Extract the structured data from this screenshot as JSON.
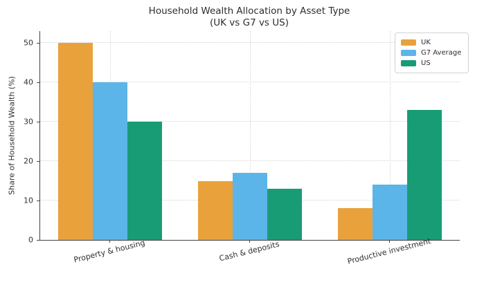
{
  "chart_data": {
    "type": "bar",
    "title": "Household Wealth Allocation by Asset Type",
    "subtitle": "(UK vs G7 vs US)",
    "ylabel": "Share of Household Wealth (%)",
    "xlabel": "",
    "categories": [
      "Property & housing",
      "Cash & deposits",
      "Productive investment"
    ],
    "series": [
      {
        "name": "UK",
        "color": "#E9A23B",
        "values": [
          50,
          15,
          8
        ]
      },
      {
        "name": "G7 Average",
        "color": "#5CB5E8",
        "values": [
          40,
          17,
          14
        ]
      },
      {
        "name": "US",
        "color": "#189C76",
        "values": [
          30,
          13,
          33
        ]
      }
    ],
    "yticks": [
      0,
      10,
      20,
      30,
      40,
      50
    ],
    "ylim": [
      0,
      53
    ],
    "grid": {
      "horizontal": true,
      "vertical": true,
      "style": "dotted"
    },
    "legend": {
      "position": "upper-right",
      "entries": [
        "UK",
        "G7 Average",
        "US"
      ]
    }
  },
  "colors": {
    "background": "#ffffff",
    "text": "#2d2d2d",
    "axis": "#424242",
    "gridline": "#d4d4d4"
  }
}
